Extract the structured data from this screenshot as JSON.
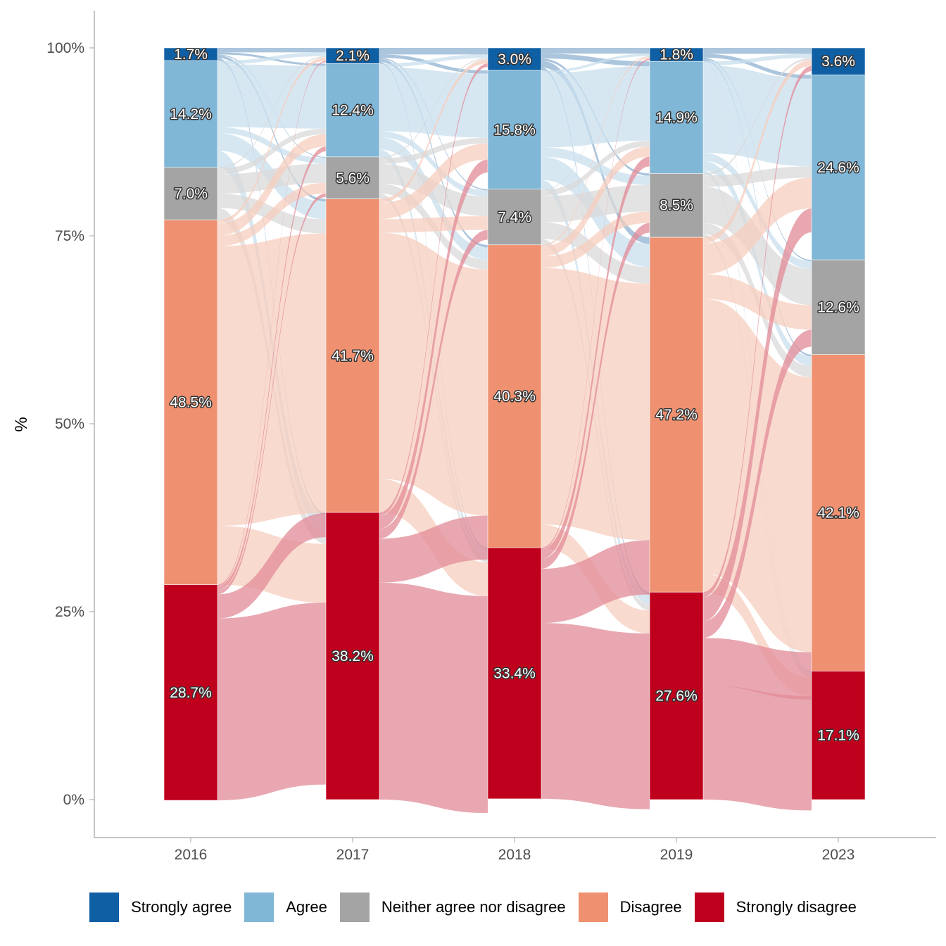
{
  "chart_data": {
    "type": "alluvial",
    "title": "",
    "xlabel": "",
    "ylabel": "%",
    "ylim": [
      0,
      100
    ],
    "y_ticks": [
      "0%",
      "25%",
      "50%",
      "75%",
      "100%"
    ],
    "y_tick_values": [
      0,
      25,
      50,
      75,
      100
    ],
    "categories": [
      "2016",
      "2017",
      "2018",
      "2019",
      "2023"
    ],
    "grid": false,
    "legend_position": "bottom",
    "levels": [
      "Strongly agree",
      "Agree",
      "Neither agree nor disagree",
      "Disagree",
      "Strongly disagree"
    ],
    "colors": {
      "Strongly agree": "#0f5fa4",
      "Agree": "#80b6d6",
      "Neither agree nor disagree": "#a4a4a4",
      "Disagree": "#ef9170",
      "Strongly disagree": "#bf001d"
    },
    "flow_colors": {
      "Strongly agree": "#8fb1d2",
      "Agree": "#c8dfee",
      "Neither agree nor disagree": "#d9d9d9",
      "Disagree": "#f7cebe",
      "Strongly disagree": "#e18b97"
    },
    "series": [
      {
        "name": "Strongly agree",
        "values": [
          1.7,
          2.1,
          3.0,
          1.8,
          3.6
        ],
        "labels": [
          "1.7%",
          "2.1%",
          "3.0%",
          "1.8%",
          "3.6%"
        ]
      },
      {
        "name": "Agree",
        "values": [
          14.2,
          12.4,
          15.8,
          14.9,
          24.6
        ],
        "labels": [
          "14.2%",
          "12.4%",
          "15.8%",
          "14.9%",
          "24.6%"
        ]
      },
      {
        "name": "Neither agree nor disagree",
        "values": [
          7.0,
          5.6,
          7.4,
          8.5,
          12.6
        ],
        "labels": [
          "7.0%",
          "5.6%",
          "7.4%",
          "8.5%",
          "12.6%"
        ]
      },
      {
        "name": "Disagree",
        "values": [
          48.5,
          41.7,
          40.3,
          47.2,
          42.1
        ],
        "labels": [
          "48.5%",
          "41.7%",
          "40.3%",
          "47.2%",
          "42.1%"
        ]
      },
      {
        "name": "Strongly disagree",
        "values": [
          28.7,
          38.2,
          33.4,
          27.6,
          17.1
        ],
        "labels": [
          "28.7%",
          "38.2%",
          "33.4%",
          "27.6%",
          "17.1%"
        ]
      }
    ]
  },
  "legend": {
    "items": [
      {
        "label": "Strongly agree",
        "color": "#0f5fa4"
      },
      {
        "label": "Agree",
        "color": "#80b6d6"
      },
      {
        "label": "Neither agree nor disagree",
        "color": "#a4a4a4"
      },
      {
        "label": "Disagree",
        "color": "#ef9170"
      },
      {
        "label": "Strongly disagree",
        "color": "#bf001d"
      }
    ]
  }
}
